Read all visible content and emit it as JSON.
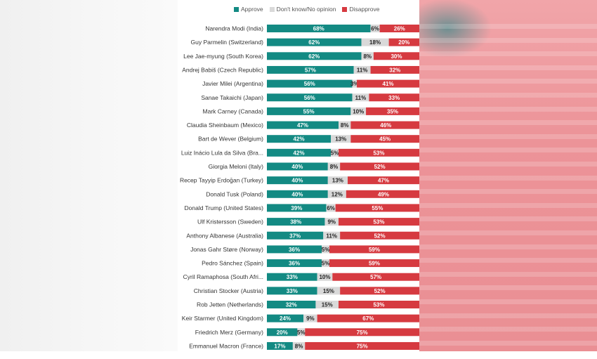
{
  "chart_data": {
    "type": "bar",
    "orientation": "horizontal",
    "stacked": true,
    "xlim": [
      0,
      100
    ],
    "legend_position": "top",
    "colors": {
      "approve": "#138a83",
      "no_opinion": "#d9d9d9",
      "disapprove": "#d63a40"
    },
    "series": [
      {
        "name": "Approve",
        "key": "approve"
      },
      {
        "name": "Don't know/No opinion",
        "key": "no_opinion"
      },
      {
        "name": "Disapprove",
        "key": "disapprove"
      }
    ],
    "rows": [
      {
        "label": "Narendra Modi (India)",
        "approve": 68,
        "no_opinion": 6,
        "disapprove": 26
      },
      {
        "label": "Guy Parmelin (Switzerland)",
        "approve": 62,
        "no_opinion": 18,
        "disapprove": 20
      },
      {
        "label": "Lee Jae-myung (South Korea)",
        "approve": 62,
        "no_opinion": 8,
        "disapprove": 30
      },
      {
        "label": "Andrej Babiš (Czech Republic)",
        "approve": 57,
        "no_opinion": 11,
        "disapprove": 32
      },
      {
        "label": "Javier Milei (Argentina)",
        "approve": 56,
        "no_opinion": 3,
        "disapprove": 41
      },
      {
        "label": "Sanae Takaichi (Japan)",
        "approve": 56,
        "no_opinion": 11,
        "disapprove": 33
      },
      {
        "label": "Mark Carney (Canada)",
        "approve": 55,
        "no_opinion": 10,
        "disapprove": 35
      },
      {
        "label": "Claudia Sheinbaum (Mexico)",
        "approve": 47,
        "no_opinion": 8,
        "disapprove": 46
      },
      {
        "label": "Bart de Wever (Belgium)",
        "approve": 42,
        "no_opinion": 13,
        "disapprove": 45
      },
      {
        "label": "Luiz Inácio Lula da Silva (Bra...",
        "approve": 42,
        "no_opinion": 5,
        "disapprove": 53
      },
      {
        "label": "Giorgia Meloni (Italy)",
        "approve": 40,
        "no_opinion": 8,
        "disapprove": 52
      },
      {
        "label": "Recep Tayyip Erdoğan (Turkey)",
        "approve": 40,
        "no_opinion": 13,
        "disapprove": 47
      },
      {
        "label": "Donald Tusk (Poland)",
        "approve": 40,
        "no_opinion": 12,
        "disapprove": 49
      },
      {
        "label": "Donald Trump (United States)",
        "approve": 39,
        "no_opinion": 6,
        "disapprove": 55
      },
      {
        "label": "Ulf Kristersson (Sweden)",
        "approve": 38,
        "no_opinion": 9,
        "disapprove": 53
      },
      {
        "label": "Anthony Albanese (Australia)",
        "approve": 37,
        "no_opinion": 11,
        "disapprove": 52
      },
      {
        "label": "Jonas Gahr Støre (Norway)",
        "approve": 36,
        "no_opinion": 5,
        "disapprove": 59
      },
      {
        "label": "Pedro Sánchez (Spain)",
        "approve": 36,
        "no_opinion": 5,
        "disapprove": 59
      },
      {
        "label": "Cyril Ramaphosa (South Afri...",
        "approve": 33,
        "no_opinion": 10,
        "disapprove": 57
      },
      {
        "label": "Christian Stocker (Austria)",
        "approve": 33,
        "no_opinion": 15,
        "disapprove": 52
      },
      {
        "label": "Rob Jetten (Netherlands)",
        "approve": 32,
        "no_opinion": 15,
        "disapprove": 53
      },
      {
        "label": "Keir Starmer (United Kingdom)",
        "approve": 24,
        "no_opinion": 9,
        "disapprove": 67
      },
      {
        "label": "Friedrich Merz (Germany)",
        "approve": 20,
        "no_opinion": 5,
        "disapprove": 75
      },
      {
        "label": "Emmanuel Macron (France)",
        "approve": 17,
        "no_opinion": 8,
        "disapprove": 75
      }
    ]
  }
}
